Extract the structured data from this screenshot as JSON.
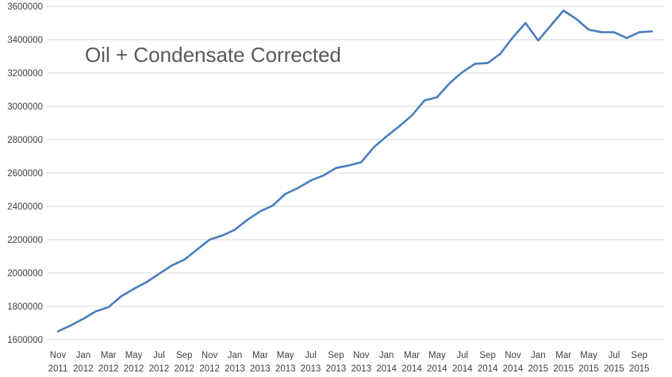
{
  "chart_data": {
    "type": "line",
    "title": "Oil + Condensate Corrected",
    "xlabel": "",
    "ylabel": "",
    "ylim": [
      1600000,
      3600000
    ],
    "yticks": [
      1600000,
      1800000,
      2000000,
      2200000,
      2400000,
      2600000,
      2800000,
      3000000,
      3200000,
      3400000,
      3600000
    ],
    "ytick_labels": [
      "1600000",
      "1800000",
      "2000000",
      "2200000",
      "2400000",
      "2600000",
      "2800000",
      "3000000",
      "3200000",
      "3400000",
      "3600000"
    ],
    "grid": true,
    "legend": "none",
    "line_color": "#4a7ebb",
    "x": [
      "2011-11",
      "2011-12",
      "2012-01",
      "2012-02",
      "2012-03",
      "2012-04",
      "2012-05",
      "2012-06",
      "2012-07",
      "2012-08",
      "2012-09",
      "2012-10",
      "2012-11",
      "2012-12",
      "2013-01",
      "2013-02",
      "2013-03",
      "2013-04",
      "2013-05",
      "2013-06",
      "2013-07",
      "2013-08",
      "2013-09",
      "2013-10",
      "2013-11",
      "2013-12",
      "2014-01",
      "2014-02",
      "2014-03",
      "2014-04",
      "2014-05",
      "2014-06",
      "2014-07",
      "2014-08",
      "2014-09",
      "2014-10",
      "2014-11",
      "2014-12",
      "2015-01",
      "2015-02",
      "2015-03",
      "2015-04",
      "2015-05",
      "2015-06",
      "2015-07",
      "2015-08",
      "2015-09",
      "2015-10"
    ],
    "xtick_labels": [
      {
        "month": "Nov",
        "year": "2011",
        "x": "2011-11"
      },
      {
        "month": "Jan",
        "year": "2012",
        "x": "2012-01"
      },
      {
        "month": "Mar",
        "year": "2012",
        "x": "2012-03"
      },
      {
        "month": "May",
        "year": "2012",
        "x": "2012-05"
      },
      {
        "month": "Jul",
        "year": "2012",
        "x": "2012-07"
      },
      {
        "month": "Sep",
        "year": "2012",
        "x": "2012-09"
      },
      {
        "month": "Nov",
        "year": "2012",
        "x": "2012-11"
      },
      {
        "month": "Jan",
        "year": "2013",
        "x": "2013-01"
      },
      {
        "month": "Mar",
        "year": "2013",
        "x": "2013-03"
      },
      {
        "month": "May",
        "year": "2013",
        "x": "2013-05"
      },
      {
        "month": "Jul",
        "year": "2013",
        "x": "2013-07"
      },
      {
        "month": "Sep",
        "year": "2013",
        "x": "2013-09"
      },
      {
        "month": "Nov",
        "year": "2013",
        "x": "2013-11"
      },
      {
        "month": "Jan",
        "year": "2014",
        "x": "2014-01"
      },
      {
        "month": "Mar",
        "year": "2014",
        "x": "2014-03"
      },
      {
        "month": "May",
        "year": "2014",
        "x": "2014-05"
      },
      {
        "month": "Jul",
        "year": "2014",
        "x": "2014-07"
      },
      {
        "month": "Sep",
        "year": "2014",
        "x": "2014-09"
      },
      {
        "month": "Nov",
        "year": "2014",
        "x": "2014-11"
      },
      {
        "month": "Jan",
        "year": "2015",
        "x": "2015-01"
      },
      {
        "month": "Mar",
        "year": "2015",
        "x": "2015-03"
      },
      {
        "month": "May",
        "year": "2015",
        "x": "2015-05"
      },
      {
        "month": "Jul",
        "year": "2015",
        "x": "2015-07"
      },
      {
        "month": "Sep",
        "year": "2015",
        "x": "2015-09"
      }
    ],
    "series": [
      {
        "values": [
          1650000,
          1685000,
          1725000,
          1770000,
          1795000,
          1860000,
          1905000,
          1945000,
          1995000,
          2045000,
          2080000,
          2140000,
          2200000,
          2225000,
          2260000,
          2320000,
          2370000,
          2405000,
          2475000,
          2510000,
          2555000,
          2585000,
          2630000,
          2645000,
          2665000,
          2755000,
          2820000,
          2880000,
          2945000,
          3035000,
          3055000,
          3140000,
          3205000,
          3255000,
          3260000,
          3315000,
          3415000,
          3500000,
          3395000,
          3485000,
          3575000,
          3525000,
          3460000,
          3445000,
          3445000,
          3410000,
          3445000,
          3450000
        ]
      }
    ]
  }
}
